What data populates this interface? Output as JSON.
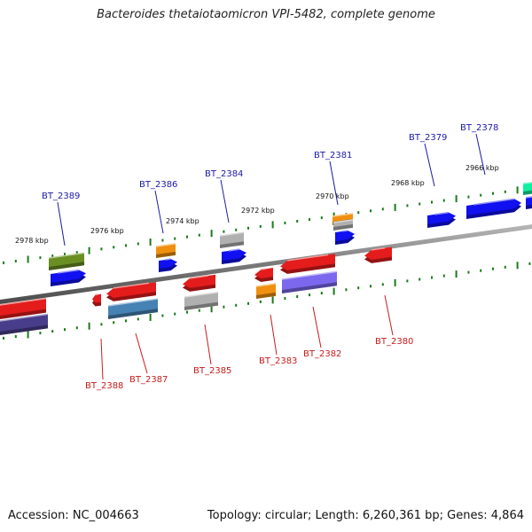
{
  "title": "Bacteroides thetaiotaomicron VPI-5482, complete genome",
  "footer": {
    "accession": "Accession: NC_004663",
    "summary": "Topology: circular; Length: 6,260,361 bp; Genes: 4,864"
  },
  "scale_labels": [
    "2978 kbp",
    "2976 kbp",
    "2974 kbp",
    "2972 kbp",
    "2970 kbp",
    "2968 kbp",
    "2966 kbp"
  ],
  "top_genes": [
    "BT_2389",
    "BT_2386",
    "BT_2384",
    "BT_2381",
    "BT_2379",
    "BT_2378"
  ],
  "bottom_genes": [
    "BT_2388",
    "BT_2387",
    "BT_2385",
    "BT_2383",
    "BT_2382",
    "BT_2380"
  ],
  "colors": {
    "axis": "#7a7a7a",
    "tick": "#1a7a1a",
    "label_top": "#1a1aa6",
    "label_bottom": "#c81c1c",
    "red": "#e41c1c",
    "blue": "#1010f0",
    "orange": "#f09010",
    "gray": "#b0b0b0",
    "olive": "#6b8e23",
    "steel": "#4682b4",
    "purple": "#7b68ee",
    "navy": "#483d8b",
    "teal": "#10f0a0"
  }
}
